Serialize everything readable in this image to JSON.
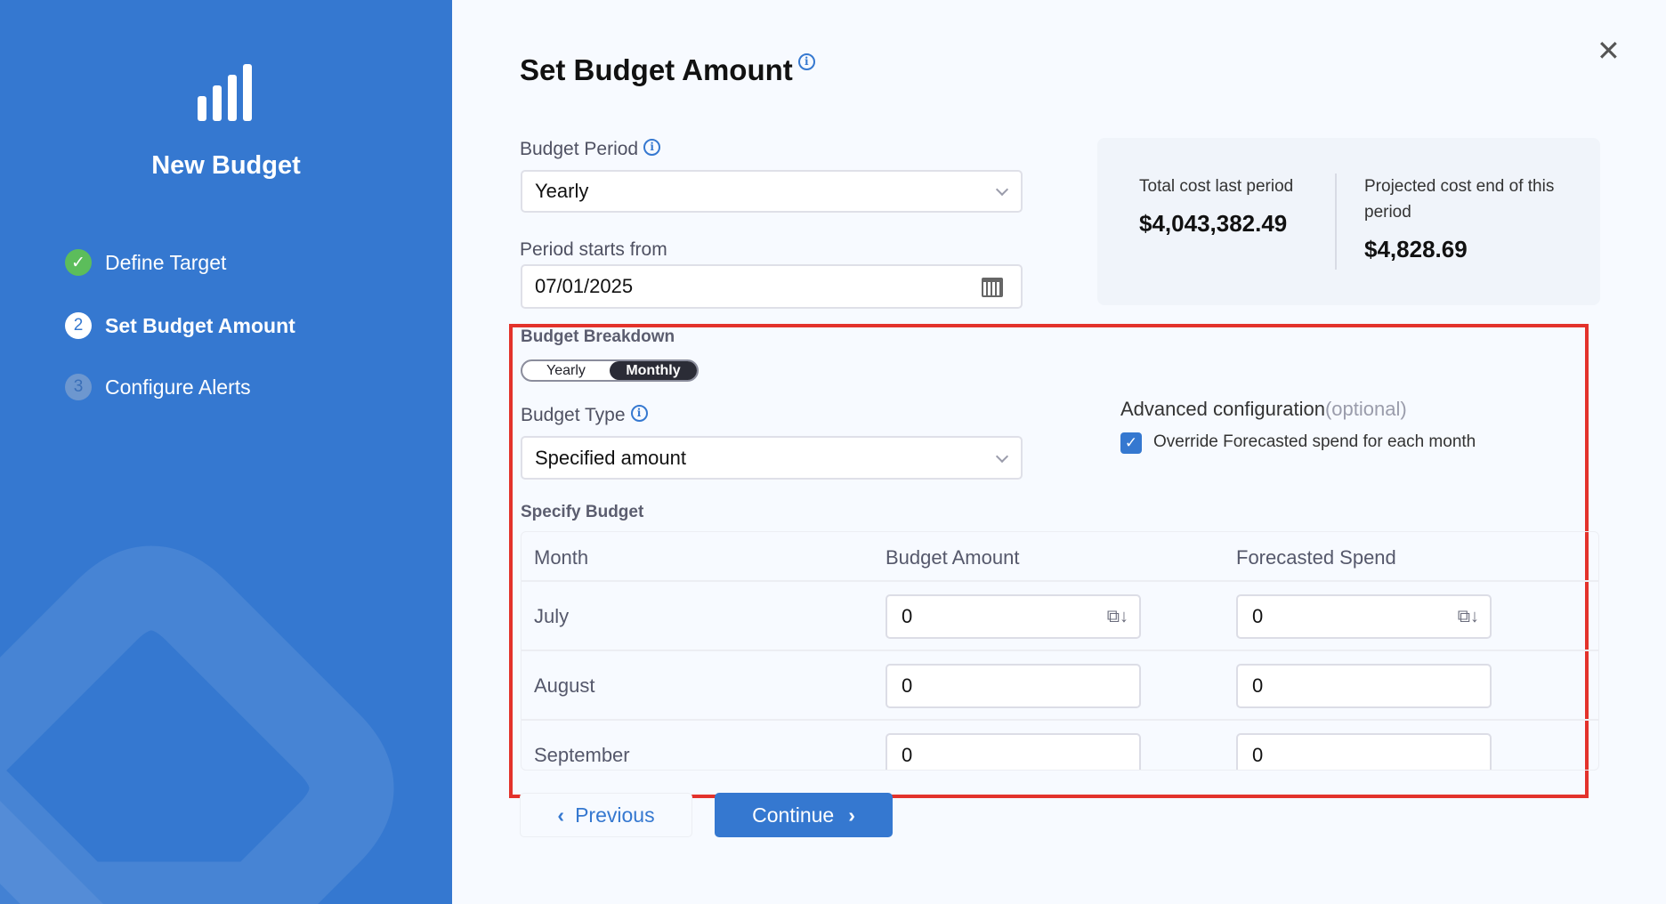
{
  "sidebar": {
    "title": "New Budget",
    "logo_icon": "bar-chart-icon",
    "steps": [
      {
        "num": "✓",
        "label": "Define Target",
        "status": "completed"
      },
      {
        "num": "2",
        "label": "Set Budget Amount",
        "status": "active"
      },
      {
        "num": "3",
        "label": "Configure Alerts",
        "status": "pending"
      }
    ]
  },
  "main": {
    "title": "Set Budget Amount",
    "budget_period": {
      "label": "Budget Period",
      "value": "Yearly"
    },
    "period_start": {
      "label": "Period starts from",
      "value": "07/01/2025"
    },
    "costs": {
      "last_label": "Total cost last period",
      "last_value": "$4,043,382.49",
      "projected_label": "Projected cost end of this period",
      "projected_value": "$4,828.69"
    },
    "breakdown": {
      "label": "Budget Breakdown",
      "options": [
        "Yearly",
        "Monthly"
      ],
      "selected": "Monthly"
    },
    "budget_type": {
      "label": "Budget Type",
      "value": "Specified amount"
    },
    "advanced": {
      "label": "Advanced configuration",
      "optional": "(optional)",
      "checkbox_label": "Override Forecasted spend for each month",
      "checked": true
    },
    "specify": {
      "label": "Specify Budget",
      "headers": [
        "Month",
        "Budget Amount",
        "Forecasted Spend"
      ],
      "rows": [
        {
          "month": "July",
          "budget": "0",
          "forecast": "0"
        },
        {
          "month": "August",
          "budget": "0",
          "forecast": "0"
        },
        {
          "month": "September",
          "budget": "0",
          "forecast": "0"
        }
      ]
    },
    "previous": "Previous",
    "continue": "Continue"
  },
  "colors": {
    "brand": "#3578d0",
    "highlight": "#e3322b",
    "success": "#5cbd5b"
  }
}
